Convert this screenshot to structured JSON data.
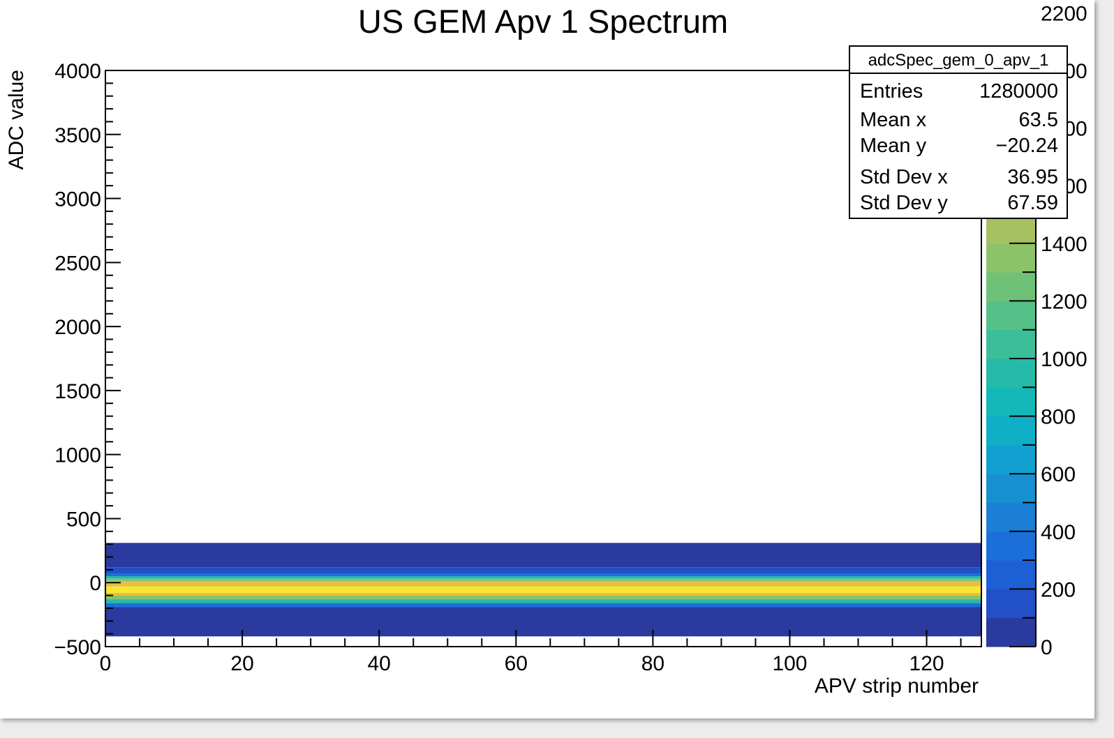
{
  "chart_data": {
    "type": "heatmap",
    "title": "US GEM Apv 1 Spectrum",
    "xlabel": "APV strip number",
    "ylabel": "ADC value",
    "xlim": [
      0,
      128
    ],
    "ylim": [
      -500,
      4000
    ],
    "x_ticks": [
      0,
      20,
      40,
      60,
      80,
      100,
      120
    ],
    "x_tick_labels": [
      "0",
      "20",
      "40",
      "60",
      "80",
      "100",
      "120"
    ],
    "y_ticks": [
      -500,
      0,
      500,
      1000,
      1500,
      2000,
      2500,
      3000,
      3500,
      4000
    ],
    "y_tick_labels": [
      "−500",
      "0",
      "500",
      "1000",
      "1500",
      "2000",
      "2500",
      "3000",
      "3500",
      "4000"
    ],
    "bands": [
      {
        "y0": -420,
        "y1": -190,
        "level": 40
      },
      {
        "y0": -190,
        "y1": -160,
        "level": 350
      },
      {
        "y0": -160,
        "y1": -130,
        "level": 900
      },
      {
        "y0": -130,
        "y1": -100,
        "level": 1300
      },
      {
        "y0": -100,
        "y1": -80,
        "level": 1750
      },
      {
        "y0": -80,
        "y1": -30,
        "level": 1950
      },
      {
        "y0": -30,
        "y1": 10,
        "level": 1750
      },
      {
        "y0": 10,
        "y1": 30,
        "level": 1300
      },
      {
        "y0": 30,
        "y1": 50,
        "level": 900
      },
      {
        "y0": 50,
        "y1": 70,
        "level": 350
      },
      {
        "y0": 70,
        "y1": 120,
        "level": 180
      },
      {
        "y0": 120,
        "y1": 310,
        "level": 40
      }
    ],
    "colorbar": {
      "zlim": [
        0,
        2000
      ],
      "ticks": [
        0,
        200,
        400,
        600,
        800,
        1000,
        1200,
        1400,
        1600,
        1800,
        2000,
        2200
      ],
      "tick_labels": [
        "0",
        "200",
        "400",
        "600",
        "800",
        "1000",
        "1200",
        "1400",
        "1600",
        "1800",
        "2000",
        "2200"
      ],
      "palette": [
        "#2a3a9e",
        "#2150c7",
        "#1d60d6",
        "#1c6fd8",
        "#1a7fd5",
        "#1790d2",
        "#12a0d0",
        "#10afc8",
        "#15b8b8",
        "#25bba8",
        "#3cbe98",
        "#55c087",
        "#6fc177",
        "#8cc26a",
        "#a8c160",
        "#c0bd58",
        "#d5b84d",
        "#e3c043",
        "#eed33a",
        "#f6e82f"
      ]
    },
    "stats_box": {
      "name": "adcSpec_gem_0_apv_1",
      "rows": [
        {
          "label": "Entries",
          "value": "1280000"
        },
        {
          "label": "Mean x",
          "value": "63.5"
        },
        {
          "label": "Mean y",
          "value": "−20.24"
        },
        {
          "label": "Std Dev x",
          "value": "36.95"
        },
        {
          "label": "Std Dev y",
          "value": "67.59"
        }
      ]
    }
  }
}
